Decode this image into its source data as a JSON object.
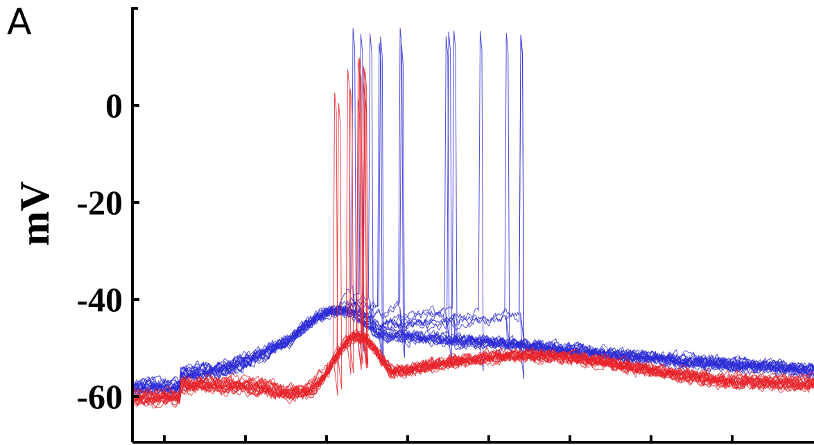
{
  "panel_label": "A",
  "chart_data": {
    "type": "line",
    "ylabel": "mV",
    "xlabel": "",
    "title": "",
    "ylim": [
      -72,
      20
    ],
    "yticks": [
      0,
      -20,
      -40,
      -60
    ],
    "ytick_labels": [
      "0",
      "-20",
      "-40",
      "-60"
    ],
    "x_tick_count": 8,
    "x_unit_labels": "none",
    "grid": false,
    "colors": {
      "red": "#e8232a",
      "blue": "#2b2bd6"
    },
    "series": [
      {
        "color": "red",
        "trace_count": 20,
        "baseline_mV": [
          -61,
          -59
        ],
        "depolarization_peak_mV": -50,
        "spike_peak_mV": [
          0,
          10
        ],
        "spike_window_fraction": [
          0.295,
          0.345
        ],
        "late_plateau_mV": -54,
        "end_mV": -58
      },
      {
        "color": "blue",
        "trace_count": 20,
        "baseline_mV": [
          -59,
          -57
        ],
        "depolarization_peak_mV": -45,
        "spike_peak_mV": [
          12,
          16
        ],
        "spike_window_fraction": [
          0.295,
          0.62
        ],
        "late_plateau_mV": -48,
        "end_mV": -54
      }
    ]
  }
}
